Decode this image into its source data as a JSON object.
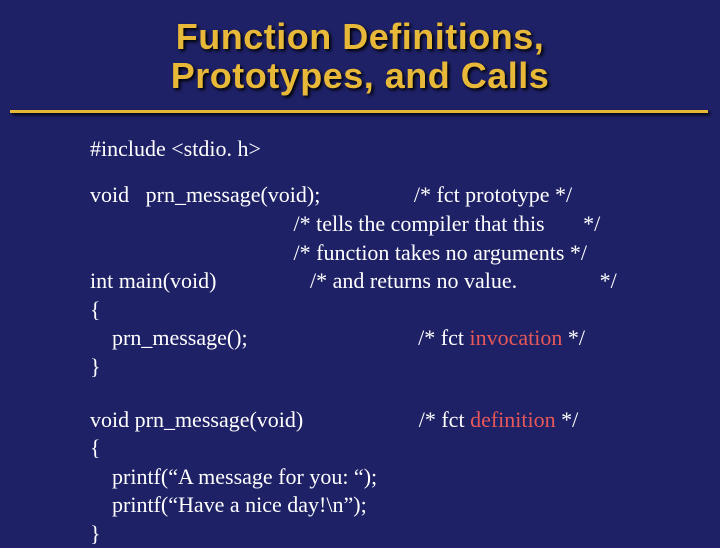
{
  "colors": {
    "background": "#1e2166",
    "title": "#e8b838",
    "bodyText": "#ffffff",
    "highlight": "#e85858"
  },
  "typography": {
    "titleFont": "Impact, Arial Black, sans-serif",
    "titleSize": 36,
    "bodyFont": "Georgia, Times New Roman, serif",
    "bodySize": 22
  },
  "title": {
    "line1": "Function Definitions,",
    "line2": "Prototypes, and Calls"
  },
  "code": {
    "include": "#include <stdio. h>",
    "proto": {
      "decl": "void   prn_message(void);",
      "c1": "/* fct prototype */",
      "c2": "/* tells the compiler that this       */",
      "c3": "/* function takes no arguments */",
      "mainDecl": "int main(void)",
      "c4": "/* and returns no value.               */",
      "open": "{",
      "call": "    prn_message();",
      "callComment": "/* fct ",
      "callHighlight": "invocation",
      "callCommentEnd": " */",
      "close": "}"
    },
    "def": {
      "decl": "void prn_message(void)",
      "defComment": "/* fct ",
      "defHighlight": "definition",
      "defCommentEnd": " */",
      "open": "{",
      "p1": "    printf(“A message for you: “);",
      "p2": "    printf(“Have a nice day!\\n”);",
      "close": "}"
    }
  }
}
